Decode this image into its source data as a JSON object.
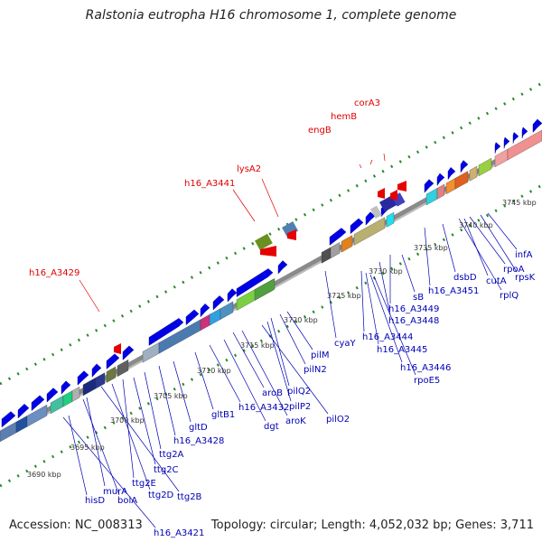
{
  "title": "Ralstonia eutropha H16 chromosome 1, complete genome",
  "accession": "Accession: NC_008313",
  "summary": "Topology: circular; Length: 4,052,032 bp; Genes: 3,711",
  "colors": {
    "forward": "#0000e6",
    "reverse": "#e60000",
    "label_blue": "#0000b4",
    "label_red": "#e00000",
    "ruler": "#808080",
    "guide": "#2a8a2a"
  },
  "scale_labels": [
    "3690 kbp",
    "3695 kbp",
    "3700 kbp",
    "3705 kbp",
    "3710 kbp",
    "3715 kbp",
    "3720 kbp",
    "3725 kbp",
    "3730 kbp",
    "3735 kbp",
    "3740 kbp",
    "3745 kbp"
  ],
  "red_labels": [
    "corA3",
    "hemB",
    "engB",
    "lysA2",
    "h16_A3441",
    "h16_A3429"
  ],
  "blue_labels": [
    "infA",
    "rpsK",
    "rpoA",
    "cutA",
    "rplQ",
    "dsbD",
    "h16_A3451",
    "sB",
    "h16_A3449",
    "h16_A3448",
    "cyaY",
    "h16_A3444",
    "h16_A3445",
    "h16_A3446",
    "rpoE5",
    "pilM",
    "pilN2",
    "pilQ2",
    "pilP2",
    "pilO2",
    "aroB",
    "aroK",
    "dgt",
    "h16_A3432",
    "gltB1",
    "gltD",
    "h16_A3428",
    "ttg2A",
    "ttg2C",
    "ttg2E",
    "ttg2D",
    "ttg2B",
    "murA",
    "bolA",
    "hisD",
    "h16_A3421"
  ]
}
